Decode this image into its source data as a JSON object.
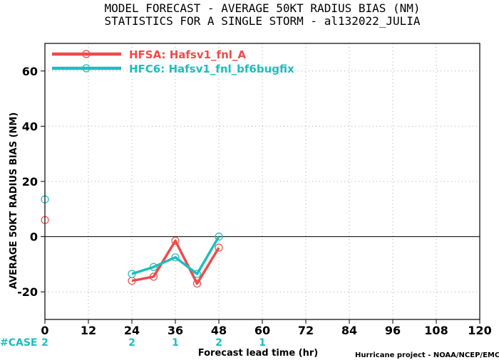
{
  "title_line1": "MODEL FORECAST - AVERAGE 50KT RADIUS BIAS (NM)",
  "title_line2": "STATISTICS FOR A SINGLE STORM - al132022_JULIA",
  "credit": "Hurricane project - NOAA/NCEP/EMC",
  "case_label": "#CASE",
  "colors": {
    "hfsa": "#f04a4a",
    "hfc6": "#1fbdbd",
    "zero_line": "#000000",
    "grid": "#aaaaaa"
  },
  "chart_data": {
    "type": "line",
    "title": "MODEL FORECAST - AVERAGE 50KT RADIUS BIAS (NM)",
    "subtitle": "STATISTICS FOR A SINGLE STORM - al132022_JULIA",
    "xlabel": "Forecast lead time (hr)",
    "ylabel": "AVERAGE 50KT RADIUS BIAS (NM)",
    "xlim": [
      0,
      120
    ],
    "ylim": [
      -30,
      70
    ],
    "xticks": [
      "0",
      "12",
      "24",
      "36",
      "48",
      "60",
      "72",
      "84",
      "96",
      "108",
      "120"
    ],
    "yticks": [
      "-20",
      "0",
      "20",
      "40",
      "60"
    ],
    "grid": true,
    "legend_position": "top-left",
    "series": [
      {
        "name": "HFSA: Hafsv1_fnl_A",
        "x": [
          0,
          24,
          30,
          36,
          42,
          48
        ],
        "y": [
          6,
          -16,
          -14.5,
          -1.5,
          -17,
          -4
        ],
        "connected_from": 24
      },
      {
        "name": "HFC6: Hafsv1_fnl_bf6bugfix",
        "x": [
          0,
          24,
          30,
          36,
          42,
          48
        ],
        "y": [
          13.5,
          -13.5,
          -11,
          -7.5,
          -13.5,
          0
        ],
        "connected_from": 24
      }
    ],
    "cases": [
      {
        "x": 0,
        "label": "2"
      },
      {
        "x": 24,
        "label": "2"
      },
      {
        "x": 36,
        "label": "1"
      },
      {
        "x": 48,
        "label": "2"
      },
      {
        "x": 60,
        "label": "1"
      }
    ]
  }
}
